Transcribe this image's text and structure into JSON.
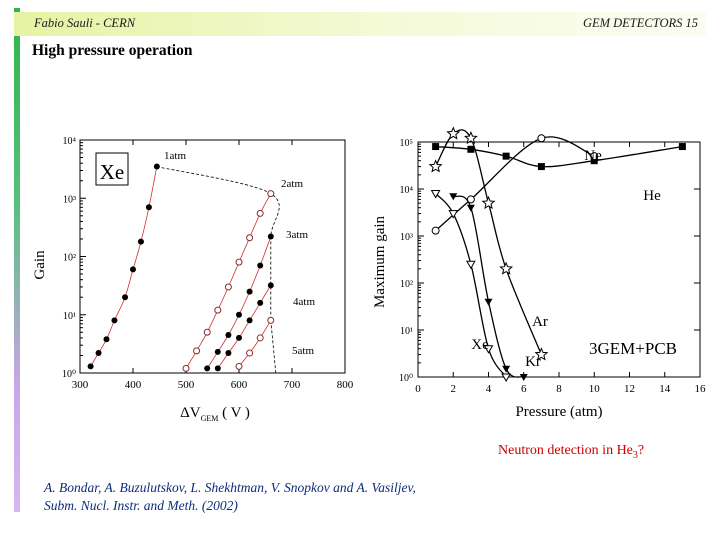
{
  "header": {
    "left": "Fabio Sauli - CERN",
    "right": "GEM DETECTORS 15"
  },
  "title": "High pressure operation",
  "note": {
    "text": "Neutron detection in He",
    "sub": "3",
    "tail": "?"
  },
  "citation": {
    "line1": "A. Bondar, A. Buzulutskov, L. Shekhtman, V. Snopkov and A. Vasiljev,",
    "line2": "Subm. Nucl. Instr. and Meth. (2002)"
  },
  "chart_data": [
    {
      "type": "scatter",
      "title": "Xe",
      "xlabel": "ΔV",
      "xlabel_sub": "GEM",
      "xlabel_unit": " ( V )",
      "ylabel": "Gain",
      "xlim": [
        300,
        800
      ],
      "ylim": [
        1,
        10000
      ],
      "yscale": "log",
      "xticks": [
        300,
        400,
        500,
        600,
        700,
        800
      ],
      "ytick_labels": [
        "10⁰",
        "10¹",
        "10²",
        "10³",
        "10⁴"
      ],
      "series": [
        {
          "name": "1atm",
          "marker": "filled",
          "x": [
            320,
            335,
            350,
            365,
            385,
            400,
            415,
            430,
            445
          ],
          "y": [
            1.3,
            2.2,
            3.8,
            8,
            20,
            60,
            180,
            700,
            3500
          ]
        },
        {
          "name": "2atm",
          "marker": "open",
          "x": [
            500,
            520,
            540,
            560,
            580,
            600,
            620,
            640,
            660
          ],
          "y": [
            1.2,
            2.4,
            5,
            12,
            30,
            80,
            210,
            550,
            1200
          ]
        },
        {
          "name": "3atm",
          "marker": "filled",
          "x": [
            540,
            560,
            580,
            600,
            620,
            640,
            660
          ],
          "y": [
            1.2,
            2.3,
            4.5,
            10,
            25,
            70,
            220
          ]
        },
        {
          "name": "4atm",
          "marker": "filled",
          "x": [
            560,
            580,
            600,
            620,
            640,
            660
          ],
          "y": [
            1.2,
            2.2,
            4,
            8,
            16,
            32
          ]
        },
        {
          "name": "5atm",
          "marker": "open",
          "x": [
            600,
            620,
            640,
            660
          ],
          "y": [
            1.3,
            2.2,
            4,
            8
          ]
        }
      ],
      "annotations": [
        "1atm",
        "2atm",
        "3atm",
        "4atm",
        "5atm"
      ]
    },
    {
      "type": "line",
      "title": "3GEM+PCB",
      "xlabel": "Pressure (atm)",
      "ylabel": "Maximum gain",
      "xlim": [
        0,
        16
      ],
      "ylim": [
        1,
        100000
      ],
      "yscale": "log",
      "xticks": [
        0,
        2,
        4,
        6,
        8,
        10,
        12,
        14,
        16
      ],
      "ytick_labels": [
        "10⁰",
        "10¹",
        "10²",
        "10³",
        "10⁴",
        "10⁵"
      ],
      "series": [
        {
          "name": "He",
          "marker": "filled-square",
          "x": [
            1,
            3,
            5,
            7,
            10,
            15
          ],
          "y": [
            80000,
            70000,
            50000,
            30000,
            40000,
            80000
          ]
        },
        {
          "name": "Ne",
          "marker": "open-circle",
          "x": [
            1,
            3,
            7,
            10
          ],
          "y": [
            1300,
            6000,
            120000,
            50000
          ]
        },
        {
          "name": "Ar",
          "marker": "open-star",
          "x": [
            1,
            2,
            3,
            4,
            5,
            7
          ],
          "y": [
            30000,
            150000,
            120000,
            5000,
            200,
            3
          ]
        },
        {
          "name": "Xe",
          "marker": "open-triangle-down",
          "x": [
            1,
            2,
            3,
            4,
            5
          ],
          "y": [
            8000,
            3000,
            250,
            4,
            1
          ]
        },
        {
          "name": "Kr",
          "marker": "filled-triangle-down",
          "x": [
            2,
            3,
            4,
            5,
            6
          ],
          "y": [
            7000,
            4000,
            40,
            1.5,
            1
          ]
        }
      ],
      "annotations": [
        "Ne",
        "He",
        "Ar",
        "Xe",
        "Kr"
      ]
    }
  ]
}
